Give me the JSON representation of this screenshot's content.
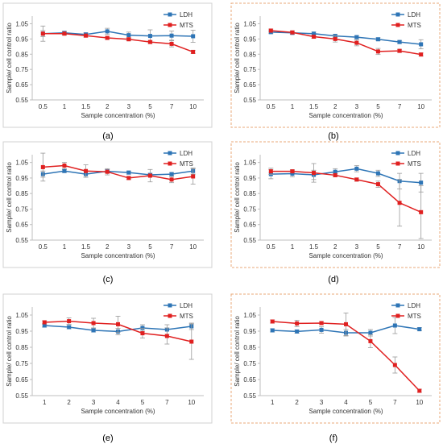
{
  "chart_data": [
    {
      "panel_label": "(a)",
      "type": "line",
      "categories": [
        "0.5",
        "1",
        "1.5",
        "2",
        "3",
        "5",
        "7",
        "10"
      ],
      "series": [
        {
          "name": "LDH",
          "color": "#2E75B6",
          "values": [
            0.985,
            0.99,
            0.98,
            1.0,
            0.975,
            0.97,
            0.972,
            0.968
          ],
          "errors": [
            0.05,
            0.01,
            0.01,
            0.02,
            0.02,
            0.04,
            0.03,
            0.04
          ]
        },
        {
          "name": "MTS",
          "color": "#E02020",
          "values": [
            0.985,
            0.985,
            0.972,
            0.957,
            0.948,
            0.93,
            0.918,
            0.865
          ],
          "errors": [
            0.02,
            0.01,
            0.01,
            0.01,
            0.01,
            0.01,
            0.02,
            0.01
          ]
        }
      ],
      "xlabel": "Sample concentration (%)",
      "ylabel": "Sample/ cell control ratio",
      "yticks": [
        "0.55",
        "0.65",
        "0.75",
        "0.85",
        "0.95",
        "1.05"
      ],
      "ylim": [
        0.55,
        1.1
      ],
      "legend_position": "top-right",
      "grid": false
    },
    {
      "panel_label": "(b)",
      "type": "line",
      "categories": [
        "0.5",
        "1",
        "1.5",
        "2",
        "3",
        "5",
        "7",
        "10"
      ],
      "series": [
        {
          "name": "LDH",
          "color": "#2E75B6",
          "values": [
            0.995,
            0.99,
            0.985,
            0.97,
            0.962,
            0.948,
            0.93,
            0.915
          ],
          "errors": [
            0.01,
            0.01,
            0.01,
            0.01,
            0.01,
            0.01,
            0.01,
            0.03
          ]
        },
        {
          "name": "MTS",
          "color": "#E02020",
          "values": [
            1.005,
            0.993,
            0.965,
            0.95,
            0.925,
            0.868,
            0.872,
            0.848
          ],
          "errors": [
            0.01,
            0.01,
            0.01,
            0.02,
            0.02,
            0.02,
            0.01,
            0.01
          ]
        }
      ],
      "xlabel": "Sample concentration (%)",
      "ylabel": "Sample/ cell control ratio",
      "yticks": [
        "0.55",
        "0.65",
        "0.75",
        "0.85",
        "0.95",
        "1.05"
      ],
      "ylim": [
        0.55,
        1.1
      ],
      "legend_position": "top-right",
      "grid": false
    },
    {
      "panel_label": "(c)",
      "type": "line",
      "categories": [
        "0.5",
        "1",
        "1.5",
        "2",
        "3",
        "5",
        "7",
        "10"
      ],
      "series": [
        {
          "name": "LDH",
          "color": "#2E75B6",
          "values": [
            0.975,
            0.995,
            0.975,
            0.993,
            0.985,
            0.97,
            0.975,
            0.995
          ],
          "errors": [
            0.02,
            0.01,
            0.02,
            0.01,
            0.01,
            0.01,
            0.01,
            0.02
          ]
        },
        {
          "name": "MTS",
          "color": "#E02020",
          "values": [
            1.02,
            1.03,
            0.995,
            0.99,
            0.95,
            0.965,
            0.94,
            0.96
          ],
          "errors": [
            0.09,
            0.02,
            0.04,
            0.02,
            0.01,
            0.04,
            0.02,
            0.05
          ]
        }
      ],
      "xlabel": "Sample concentration (%)",
      "ylabel": "Sample/ cell control ratio",
      "yticks": [
        "0.55",
        "0.65",
        "0.75",
        "0.85",
        "0.95",
        "1.05"
      ],
      "ylim": [
        0.55,
        1.1
      ],
      "legend_position": "top-right",
      "grid": false
    },
    {
      "panel_label": "(d)",
      "type": "line",
      "categories": [
        "0.5",
        "1",
        "1.5",
        "2",
        "3",
        "5",
        "7",
        "10"
      ],
      "series": [
        {
          "name": "LDH",
          "color": "#2E75B6",
          "values": [
            0.975,
            0.978,
            0.97,
            0.99,
            1.01,
            0.98,
            0.93,
            0.92
          ],
          "errors": [
            0.03,
            0.02,
            0.03,
            0.02,
            0.02,
            0.02,
            0.05,
            0.06
          ]
        },
        {
          "name": "MTS",
          "color": "#E02020",
          "values": [
            0.993,
            0.993,
            0.983,
            0.968,
            0.94,
            0.91,
            0.79,
            0.73
          ],
          "errors": [
            0.02,
            0.01,
            0.06,
            0.01,
            0.01,
            0.02,
            0.15,
            0.17
          ]
        }
      ],
      "xlabel": "Sample concentration (%)",
      "ylabel": "Sample/ cell control ratio",
      "yticks": [
        "0.55",
        "0.65",
        "0.75",
        "0.85",
        "0.95",
        "1.05"
      ],
      "ylim": [
        0.55,
        1.1
      ],
      "legend_position": "top-right",
      "grid": false
    },
    {
      "panel_label": "(e)",
      "type": "line",
      "categories": [
        "1",
        "2",
        "3",
        "4",
        "5",
        "7",
        "10"
      ],
      "series": [
        {
          "name": "LDH",
          "color": "#2E75B6",
          "values": [
            0.985,
            0.975,
            0.955,
            0.948,
            0.97,
            0.96,
            0.98
          ],
          "errors": [
            0.01,
            0.01,
            0.01,
            0.02,
            0.02,
            0.03,
            0.02
          ]
        },
        {
          "name": "MTS",
          "color": "#E02020",
          "values": [
            1.005,
            1.012,
            1.0,
            0.993,
            0.937,
            0.92,
            0.885
          ],
          "errors": [
            0.01,
            0.02,
            0.03,
            0.05,
            0.03,
            0.05,
            0.11
          ]
        }
      ],
      "xlabel": "Sample concentration (%)",
      "ylabel": "Sample/ cell control ratio",
      "yticks": [
        "0.55",
        "0.65",
        "0.75",
        "0.85",
        "0.95",
        "1.05"
      ],
      "ylim": [
        0.55,
        1.1
      ],
      "legend_position": "top-right",
      "grid": false
    },
    {
      "panel_label": "(f)",
      "type": "line",
      "categories": [
        "1",
        "2",
        "3",
        "4",
        "5",
        "7",
        "10"
      ],
      "series": [
        {
          "name": "LDH",
          "color": "#2E75B6",
          "values": [
            0.955,
            0.948,
            0.958,
            0.94,
            0.94,
            0.985,
            0.962
          ],
          "errors": [
            0.01,
            0.01,
            0.02,
            0.02,
            0.02,
            0.05,
            0.01
          ]
        },
        {
          "name": "MTS",
          "color": "#E02020",
          "values": [
            1.01,
            0.998,
            1.0,
            0.993,
            0.888,
            0.74,
            0.58
          ],
          "errors": [
            0.01,
            0.02,
            0.01,
            0.07,
            0.04,
            0.05,
            0.01
          ]
        }
      ],
      "xlabel": "Sample concentration (%)",
      "ylabel": "Sample/ cell control ratio",
      "yticks": [
        "0.55",
        "0.65",
        "0.75",
        "0.85",
        "0.95",
        "1.05"
      ],
      "ylim": [
        0.55,
        1.1
      ],
      "legend_position": "top-right",
      "grid": false
    }
  ]
}
